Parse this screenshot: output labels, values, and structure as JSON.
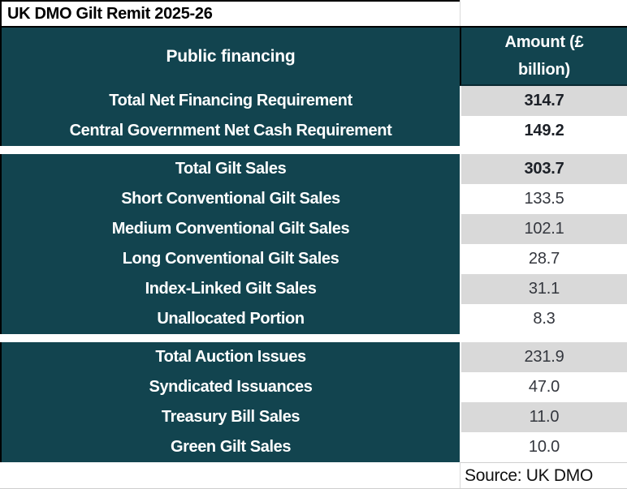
{
  "chart_data": {
    "type": "table",
    "title": "UK DMO Gilt Remit 2025-26",
    "header": {
      "label_column": "Public financing",
      "value_column": "Amount (£ billion)"
    },
    "sections": [
      {
        "rows": [
          {
            "label": "Total Net Financing Requirement",
            "value": "314.7"
          },
          {
            "label": "Central Government Net Cash Requirement",
            "value": "149.2"
          }
        ]
      },
      {
        "rows": [
          {
            "label": "Total Gilt Sales",
            "value": "303.7"
          },
          {
            "label": "Short Conventional Gilt Sales",
            "value": "133.5"
          },
          {
            "label": "Medium Conventional Gilt Sales",
            "value": "102.1"
          },
          {
            "label": "Long Conventional Gilt Sales",
            "value": "28.7"
          },
          {
            "label": "Index-Linked Gilt Sales",
            "value": "31.1"
          },
          {
            "label": "Unallocated Portion",
            "value": "8.3"
          }
        ]
      },
      {
        "rows": [
          {
            "label": "Total Auction Issues",
            "value": "231.9"
          },
          {
            "label": "Syndicated Issuances",
            "value": "47.0"
          },
          {
            "label": "Treasury Bill Sales",
            "value": "11.0"
          },
          {
            "label": "Green Gilt Sales",
            "value": "10.0"
          }
        ]
      }
    ],
    "source": "Source: UK DMO",
    "units": "£ billion",
    "colors": {
      "header_bg": "#12444f",
      "row_shade": "#d9d9d9",
      "label_text": "#ffffff",
      "value_text": "#34373e"
    }
  }
}
